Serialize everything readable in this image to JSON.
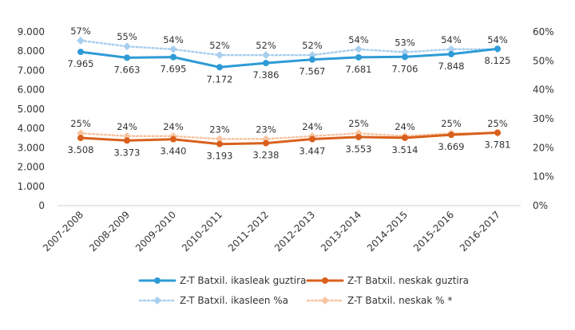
{
  "chart_data": {
    "type": "line",
    "categories": [
      "2007-2008",
      "2008-2009",
      "2009-2010",
      "2010-2011",
      "2011-2012",
      "2012-2013",
      "2013-2014",
      "2014-2015",
      "2015-2016",
      "2016-2017"
    ],
    "y_left": {
      "range": [
        0,
        9000
      ],
      "ticks": [
        0,
        1000,
        2000,
        3000,
        4000,
        5000,
        6000,
        7000,
        8000,
        9000
      ],
      "tick_labels": [
        "0",
        "1.000",
        "2.000",
        "3.000",
        "4.000",
        "5.000",
        "6.000",
        "7.000",
        "8.000",
        "9.000"
      ]
    },
    "y_right": {
      "range": [
        0,
        60
      ],
      "ticks": [
        0,
        10,
        20,
        30,
        40,
        50,
        60
      ],
      "tick_labels": [
        "0%",
        "10%",
        "20%",
        "30%",
        "40%",
        "50%",
        "60%"
      ]
    },
    "series": [
      {
        "name": "Z-T Batxil. ikasleak guztira",
        "axis": "left",
        "style": "solid",
        "color": "#2e9bd6",
        "values": [
          7965,
          7663,
          7695,
          7172,
          7386,
          7567,
          7681,
          7706,
          7848,
          8125
        ],
        "labels": [
          "7.965",
          "7.663",
          "7.695",
          "7.172",
          "7.386",
          "7.567",
          "7.681",
          "7.706",
          "7.848",
          "8.125"
        ]
      },
      {
        "name": "Z-T Batxil. neskak guztira",
        "axis": "left",
        "style": "solid",
        "color": "#d9601c",
        "values": [
          3508,
          3373,
          3440,
          3193,
          3238,
          3447,
          3553,
          3514,
          3669,
          3781
        ],
        "labels": [
          "3.508",
          "3.373",
          "3.440",
          "3.193",
          "3.238",
          "3.447",
          "3.553",
          "3.514",
          "3.669",
          "3.781"
        ]
      },
      {
        "name": "Z-T Batxil. ikasleen %a",
        "axis": "right",
        "style": "dotted",
        "color": "#a9cfee",
        "values": [
          57,
          55,
          54,
          52,
          52,
          52,
          54,
          53,
          54,
          54
        ],
        "labels": [
          "57%",
          "55%",
          "54%",
          "52%",
          "52%",
          "52%",
          "54%",
          "53%",
          "54%",
          "54%"
        ]
      },
      {
        "name": "Z-T Batxil. neskak % *",
        "axis": "right",
        "style": "dotted",
        "color": "#f7c5a2",
        "values": [
          25,
          24,
          24,
          23,
          23,
          24,
          25,
          24,
          25,
          25
        ],
        "labels": [
          "25%",
          "24%",
          "24%",
          "23%",
          "23%",
          "24%",
          "25%",
          "24%",
          "25%",
          "25%"
        ]
      }
    ],
    "grid": false,
    "legend": "bottom"
  }
}
